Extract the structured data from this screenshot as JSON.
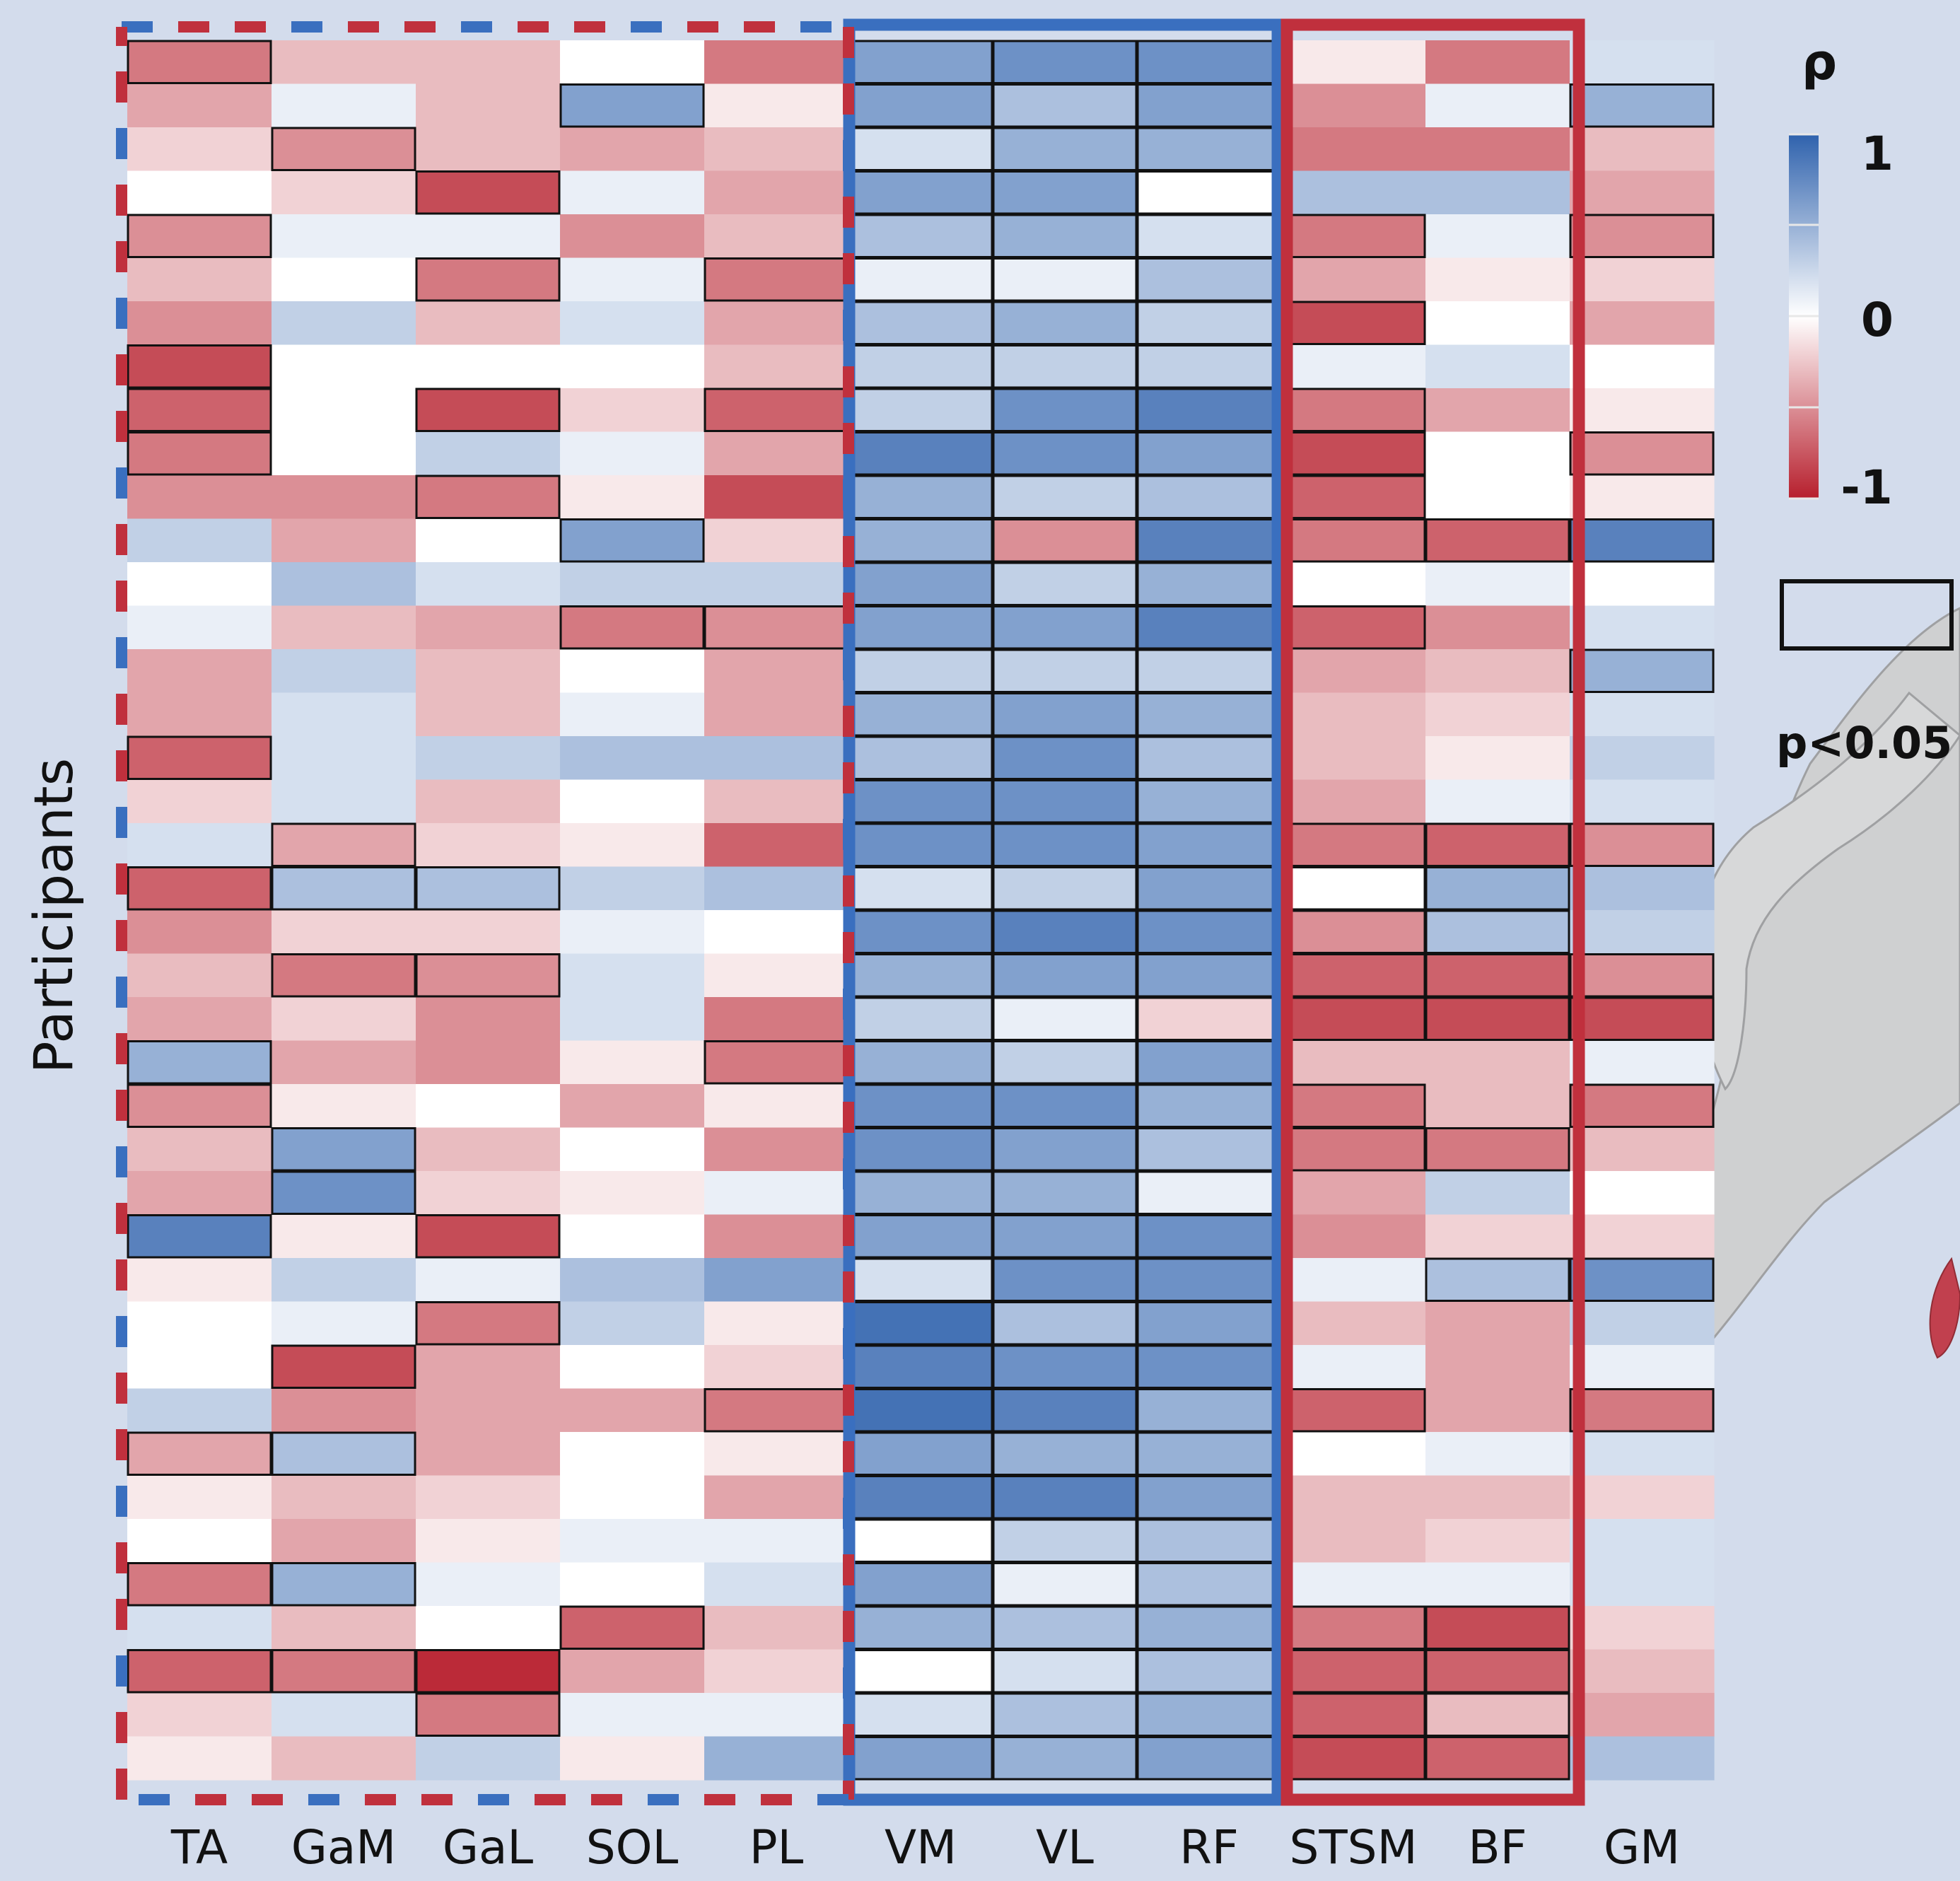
{
  "chart_data": {
    "type": "heatmap",
    "title": "",
    "xlabel": "",
    "ylabel": "Participants",
    "columns": [
      "TA",
      "GaM",
      "GaL",
      "SOL",
      "PL",
      "VM",
      "VL",
      "RF",
      "STSM",
      "BF",
      "GM"
    ],
    "n_participants": 40,
    "values": [
      [
        -0.6,
        -0.3,
        -0.3,
        0.0,
        -0.6,
        0.6,
        0.7,
        0.7,
        -0.1,
        -0.6,
        0.2
      ],
      [
        -0.4,
        0.1,
        -0.3,
        0.6,
        -0.1,
        0.6,
        0.4,
        0.6,
        -0.5,
        0.1,
        0.5
      ],
      [
        -0.2,
        -0.5,
        -0.3,
        -0.4,
        -0.3,
        0.2,
        0.5,
        0.5,
        -0.6,
        -0.6,
        -0.3
      ],
      [
        0.0,
        -0.2,
        -0.8,
        0.1,
        -0.4,
        0.6,
        0.6,
        0.0,
        0.4,
        0.4,
        -0.4
      ],
      [
        -0.5,
        0.1,
        0.1,
        -0.5,
        -0.3,
        0.4,
        0.5,
        0.2,
        -0.6,
        0.1,
        -0.5
      ],
      [
        -0.3,
        0.0,
        -0.6,
        0.1,
        -0.6,
        0.1,
        0.1,
        0.4,
        -0.4,
        -0.1,
        -0.2
      ],
      [
        -0.5,
        0.3,
        -0.3,
        0.2,
        -0.4,
        0.4,
        0.5,
        0.3,
        -0.8,
        0.0,
        -0.4
      ],
      [
        -0.8,
        0.0,
        0.0,
        0.0,
        -0.3,
        0.3,
        0.3,
        0.3,
        0.1,
        0.2,
        0.0
      ],
      [
        -0.7,
        0.0,
        -0.8,
        -0.2,
        -0.7,
        0.3,
        0.7,
        0.8,
        -0.6,
        -0.4,
        -0.1
      ],
      [
        -0.6,
        0.0,
        0.3,
        0.1,
        -0.4,
        0.8,
        0.7,
        0.6,
        -0.8,
        0.0,
        -0.5
      ],
      [
        -0.5,
        -0.5,
        -0.6,
        -0.1,
        -0.8,
        0.5,
        0.3,
        0.4,
        -0.7,
        0.0,
        -0.1
      ],
      [
        0.3,
        -0.4,
        0.0,
        0.6,
        -0.2,
        0.5,
        -0.5,
        0.8,
        -0.6,
        -0.7,
        0.8
      ],
      [
        0.0,
        0.4,
        0.2,
        0.3,
        0.3,
        0.6,
        0.3,
        0.5,
        0.0,
        0.1,
        0.0
      ],
      [
        0.1,
        -0.3,
        -0.4,
        -0.6,
        -0.5,
        0.6,
        0.6,
        0.8,
        -0.7,
        -0.5,
        0.2
      ],
      [
        -0.4,
        0.3,
        -0.3,
        0.0,
        -0.4,
        0.3,
        0.3,
        0.3,
        -0.4,
        -0.3,
        0.5
      ],
      [
        -0.4,
        0.2,
        -0.3,
        0.1,
        -0.4,
        0.5,
        0.6,
        0.5,
        -0.3,
        -0.2,
        0.2
      ],
      [
        -0.7,
        0.2,
        0.3,
        0.4,
        0.4,
        0.4,
        0.7,
        0.4,
        -0.3,
        -0.1,
        0.3
      ],
      [
        -0.2,
        0.2,
        -0.3,
        0.0,
        -0.3,
        0.7,
        0.7,
        0.5,
        -0.4,
        0.1,
        0.2
      ],
      [
        0.2,
        -0.4,
        -0.2,
        -0.1,
        -0.7,
        0.7,
        0.7,
        0.6,
        -0.6,
        -0.7,
        -0.5
      ],
      [
        -0.7,
        0.4,
        0.4,
        0.3,
        0.4,
        0.2,
        0.3,
        0.6,
        0.0,
        0.5,
        0.4
      ],
      [
        -0.5,
        -0.2,
        -0.2,
        0.1,
        0.0,
        0.7,
        0.8,
        0.7,
        -0.5,
        0.4,
        0.3
      ],
      [
        -0.3,
        -0.6,
        -0.5,
        0.2,
        -0.1,
        0.5,
        0.6,
        0.6,
        -0.7,
        -0.7,
        -0.5
      ],
      [
        -0.4,
        -0.2,
        -0.5,
        0.2,
        -0.6,
        0.3,
        0.1,
        -0.2,
        -0.8,
        -0.8,
        -0.8
      ],
      [
        0.5,
        -0.4,
        -0.5,
        -0.1,
        -0.6,
        0.5,
        0.3,
        0.6,
        -0.3,
        -0.3,
        0.1
      ],
      [
        -0.5,
        -0.1,
        0.0,
        -0.4,
        -0.1,
        0.7,
        0.7,
        0.5,
        -0.6,
        -0.3,
        -0.6
      ],
      [
        -0.3,
        0.6,
        -0.3,
        0.0,
        -0.5,
        0.7,
        0.6,
        0.4,
        -0.6,
        -0.6,
        -0.3
      ],
      [
        -0.4,
        0.7,
        -0.2,
        -0.1,
        0.1,
        0.5,
        0.5,
        0.1,
        -0.4,
        0.3,
        0.0
      ],
      [
        0.8,
        -0.1,
        -0.8,
        0.0,
        -0.5,
        0.6,
        0.6,
        0.7,
        -0.5,
        -0.2,
        -0.2
      ],
      [
        -0.1,
        0.3,
        0.1,
        0.4,
        0.6,
        0.2,
        0.7,
        0.7,
        0.1,
        0.4,
        0.7
      ],
      [
        0.0,
        0.1,
        -0.6,
        0.3,
        -0.1,
        0.9,
        0.4,
        0.6,
        -0.3,
        -0.4,
        0.3
      ],
      [
        0.0,
        -0.8,
        -0.4,
        0.0,
        -0.2,
        0.8,
        0.7,
        0.7,
        0.1,
        -0.4,
        0.1
      ],
      [
        0.3,
        -0.5,
        -0.4,
        -0.4,
        -0.6,
        0.9,
        0.8,
        0.5,
        -0.7,
        -0.4,
        -0.6
      ],
      [
        -0.4,
        0.4,
        -0.4,
        0.0,
        -0.1,
        0.6,
        0.5,
        0.5,
        0.0,
        0.1,
        0.2
      ],
      [
        -0.1,
        -0.3,
        -0.2,
        0.0,
        -0.4,
        0.8,
        0.8,
        0.6,
        -0.3,
        -0.3,
        -0.2
      ],
      [
        0.0,
        -0.4,
        -0.1,
        0.1,
        0.1,
        0.0,
        0.3,
        0.4,
        -0.3,
        -0.2,
        0.2
      ],
      [
        -0.6,
        0.5,
        0.1,
        0.0,
        0.2,
        0.6,
        0.1,
        0.4,
        0.1,
        0.1,
        0.2
      ],
      [
        0.2,
        -0.3,
        0.0,
        -0.7,
        -0.3,
        0.5,
        0.4,
        0.5,
        -0.6,
        -0.8,
        -0.2
      ],
      [
        -0.7,
        -0.6,
        -0.95,
        -0.4,
        -0.2,
        0.0,
        0.2,
        0.4,
        -0.7,
        -0.7,
        -0.3
      ],
      [
        -0.2,
        0.2,
        -0.6,
        0.1,
        0.1,
        0.2,
        0.4,
        0.5,
        -0.7,
        -0.3,
        -0.4
      ],
      [
        -0.1,
        -0.3,
        0.3,
        -0.1,
        0.5,
        0.6,
        0.5,
        0.6,
        -0.8,
        -0.7,
        0.4
      ]
    ],
    "significant": [
      [
        1,
        0,
        0,
        0,
        0,
        1,
        1,
        1,
        0,
        0,
        0
      ],
      [
        0,
        0,
        0,
        1,
        0,
        1,
        1,
        1,
        0,
        0,
        1
      ],
      [
        0,
        1,
        0,
        0,
        0,
        1,
        1,
        1,
        0,
        0,
        0
      ],
      [
        0,
        0,
        1,
        0,
        0,
        1,
        1,
        1,
        0,
        0,
        0
      ],
      [
        1,
        0,
        0,
        0,
        0,
        1,
        1,
        1,
        1,
        0,
        1
      ],
      [
        0,
        0,
        1,
        0,
        1,
        1,
        1,
        1,
        0,
        0,
        0
      ],
      [
        0,
        0,
        0,
        0,
        0,
        1,
        1,
        1,
        1,
        0,
        0
      ],
      [
        1,
        0,
        0,
        0,
        0,
        1,
        1,
        1,
        0,
        0,
        0
      ],
      [
        1,
        0,
        1,
        0,
        1,
        1,
        1,
        1,
        1,
        0,
        0
      ],
      [
        1,
        0,
        0,
        0,
        0,
        1,
        1,
        1,
        1,
        0,
        1
      ],
      [
        0,
        0,
        1,
        0,
        0,
        1,
        1,
        1,
        1,
        0,
        0
      ],
      [
        0,
        0,
        0,
        1,
        0,
        1,
        1,
        1,
        1,
        1,
        1
      ],
      [
        0,
        0,
        0,
        0,
        0,
        1,
        1,
        1,
        0,
        0,
        0
      ],
      [
        0,
        0,
        0,
        1,
        1,
        1,
        1,
        1,
        1,
        0,
        0
      ],
      [
        0,
        0,
        0,
        0,
        0,
        1,
        1,
        1,
        0,
        0,
        1
      ],
      [
        0,
        0,
        0,
        0,
        0,
        1,
        1,
        1,
        0,
        0,
        0
      ],
      [
        1,
        0,
        0,
        0,
        0,
        1,
        1,
        1,
        0,
        0,
        0
      ],
      [
        0,
        0,
        0,
        0,
        0,
        1,
        1,
        1,
        0,
        0,
        0
      ],
      [
        0,
        1,
        0,
        0,
        0,
        1,
        1,
        1,
        1,
        1,
        1
      ],
      [
        1,
        1,
        1,
        0,
        0,
        1,
        1,
        1,
        1,
        1,
        0
      ],
      [
        0,
        0,
        0,
        0,
        0,
        1,
        1,
        1,
        1,
        1,
        0
      ],
      [
        0,
        1,
        1,
        0,
        0,
        1,
        1,
        1,
        1,
        1,
        1
      ],
      [
        0,
        0,
        0,
        0,
        0,
        1,
        1,
        1,
        1,
        1,
        1
      ],
      [
        1,
        0,
        0,
        0,
        1,
        1,
        1,
        1,
        0,
        0,
        0
      ],
      [
        1,
        0,
        0,
        0,
        0,
        1,
        1,
        1,
        1,
        0,
        1
      ],
      [
        0,
        1,
        0,
        0,
        0,
        1,
        1,
        1,
        1,
        1,
        0
      ],
      [
        0,
        1,
        0,
        0,
        0,
        1,
        1,
        1,
        0,
        0,
        0
      ],
      [
        1,
        0,
        1,
        0,
        0,
        1,
        1,
        1,
        0,
        0,
        0
      ],
      [
        0,
        0,
        0,
        0,
        0,
        1,
        1,
        1,
        0,
        1,
        1
      ],
      [
        0,
        0,
        1,
        0,
        0,
        1,
        1,
        1,
        0,
        0,
        0
      ],
      [
        0,
        1,
        0,
        0,
        0,
        1,
        1,
        1,
        0,
        0,
        0
      ],
      [
        0,
        0,
        0,
        0,
        1,
        1,
        1,
        1,
        1,
        0,
        1
      ],
      [
        1,
        1,
        0,
        0,
        0,
        1,
        1,
        1,
        0,
        0,
        0
      ],
      [
        0,
        0,
        0,
        0,
        0,
        1,
        1,
        1,
        0,
        0,
        0
      ],
      [
        0,
        0,
        0,
        0,
        0,
        1,
        1,
        1,
        0,
        0,
        0
      ],
      [
        1,
        1,
        0,
        0,
        0,
        1,
        1,
        1,
        0,
        0,
        0
      ],
      [
        0,
        0,
        0,
        1,
        0,
        1,
        1,
        1,
        1,
        1,
        0
      ],
      [
        1,
        1,
        1,
        0,
        0,
        1,
        1,
        1,
        1,
        1,
        0
      ],
      [
        0,
        0,
        1,
        0,
        0,
        1,
        1,
        1,
        1,
        1,
        0
      ],
      [
        0,
        0,
        0,
        0,
        0,
        1,
        1,
        1,
        1,
        1,
        0
      ]
    ],
    "colorbar": {
      "label": "ρ",
      "ticks": [
        "1",
        "0",
        "-1"
      ],
      "range": [
        -1,
        1
      ]
    },
    "significance_legend": "p<0.05",
    "group_frames": {
      "blue": [
        "VM",
        "VL",
        "RF"
      ],
      "red": [
        "STSM",
        "BF"
      ],
      "mixed_dashed": [
        "TA",
        "GaM",
        "GaL",
        "SOL",
        "PL"
      ]
    },
    "colors": {
      "positive": "#2f62ad",
      "neutral": "#ffffff",
      "negative": "#b71f2d",
      "background": "#d3dcec"
    },
    "grid": false
  }
}
